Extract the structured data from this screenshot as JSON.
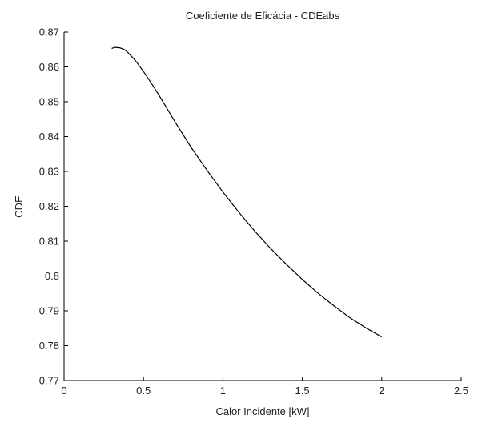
{
  "chart_data": {
    "type": "line",
    "title": "Coeficiente de Eficácia - CDEabs",
    "xlabel": "Calor Incidente [kW]",
    "ylabel": "CDE",
    "xlim": [
      0,
      2.5
    ],
    "ylim": [
      0.77,
      0.87
    ],
    "xticks": [
      0,
      0.5,
      1,
      1.5,
      2,
      2.5
    ],
    "xtick_labels": [
      "0",
      "0.5",
      "1",
      "1.5",
      "2",
      "2.5"
    ],
    "yticks": [
      0.77,
      0.78,
      0.79,
      0.8,
      0.81,
      0.82,
      0.83,
      0.84,
      0.85,
      0.86,
      0.87
    ],
    "ytick_labels": [
      "0.77",
      "0.78",
      "0.79",
      "0.8",
      "0.81",
      "0.82",
      "0.83",
      "0.84",
      "0.85",
      "0.86",
      "0.87"
    ],
    "grid": false,
    "series": [
      {
        "color": "#000000",
        "x": [
          0.3,
          0.32,
          0.35,
          0.38,
          0.4,
          0.45,
          0.5,
          0.55,
          0.6,
          0.65,
          0.7,
          0.75,
          0.8,
          0.9,
          1.0,
          1.1,
          1.2,
          1.3,
          1.4,
          1.5,
          1.6,
          1.7,
          1.8,
          1.9,
          2.0
        ],
        "y": [
          0.8653,
          0.8656,
          0.8655,
          0.865,
          0.8642,
          0.8618,
          0.8587,
          0.8553,
          0.8517,
          0.8479,
          0.8441,
          0.8405,
          0.8369,
          0.8303,
          0.8241,
          0.8183,
          0.8129,
          0.8079,
          0.8033,
          0.799,
          0.795,
          0.7914,
          0.788,
          0.7851,
          0.7825
        ]
      }
    ]
  }
}
